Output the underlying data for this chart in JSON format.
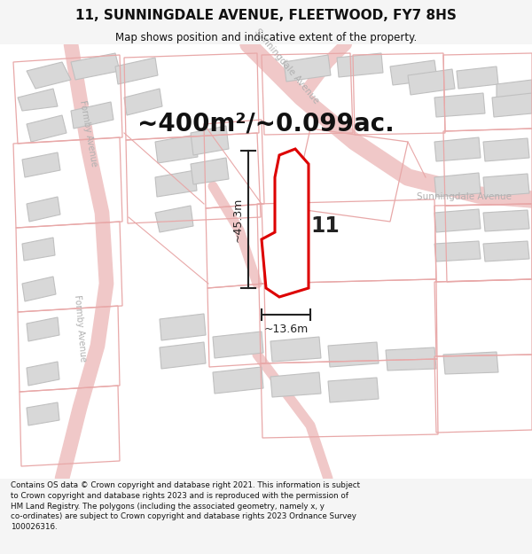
{
  "title": "11, SUNNINGDALE AVENUE, FLEETWOOD, FY7 8HS",
  "subtitle": "Map shows position and indicative extent of the property.",
  "area_text": "~400m²/~0.099ac.",
  "property_number": "11",
  "dim_vertical": "~45.3m",
  "dim_horizontal": "~13.6m",
  "footer": "Contains OS data © Crown copyright and database right 2021. This information is subject to Crown copyright and database rights 2023 and is reproduced with the permission of HM Land Registry. The polygons (including the associated geometry, namely x, y co-ordinates) are subject to Crown copyright and database rights 2023 Ordnance Survey 100026316.",
  "bg_color": "#f5f5f5",
  "map_bg": "#ffffff",
  "plot_color": "#dd0000",
  "road_color": "#f0c8c8",
  "building_color": "#d8d8d8",
  "building_edge": "#c0c0c0",
  "parcel_color": "#e8a8a8",
  "street_label_color": "#b0b0b0",
  "dim_color": "#222222",
  "footer_color": "#111111",
  "title_color": "#111111",
  "area_color": "#111111"
}
